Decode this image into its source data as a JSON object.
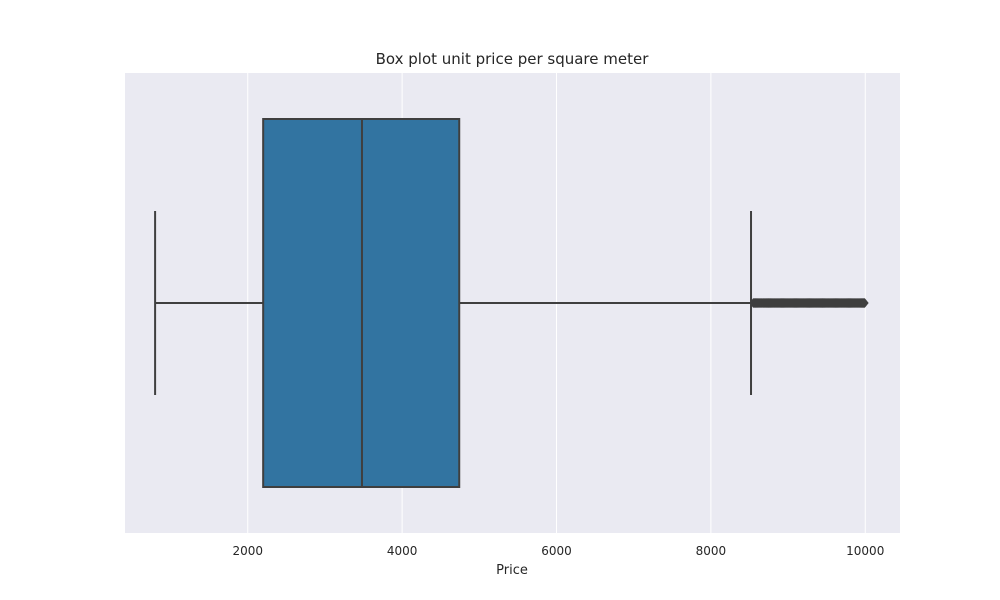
{
  "chart_data": {
    "type": "boxplot",
    "title": "Box plot unit price per square meter",
    "xlabel": "Price",
    "ylabel": "",
    "xlim": [
      410,
      10450
    ],
    "xticks": [
      2000,
      4000,
      6000,
      8000,
      10000
    ],
    "xtick_labels": [
      "2000",
      "4000",
      "6000",
      "8000",
      "10000"
    ],
    "grid": true,
    "orientation": "horizontal",
    "box": {
      "whisker_low": 800,
      "q1": 2200,
      "median": 3480,
      "q3": 4740,
      "whisker_high": 8520,
      "outliers_min": 8550,
      "outliers_max": 10000
    },
    "colors": {
      "box": "#3274a1",
      "line": "#3f3f3f",
      "background": "#eaeaf2",
      "grid": "#ffffff"
    }
  }
}
